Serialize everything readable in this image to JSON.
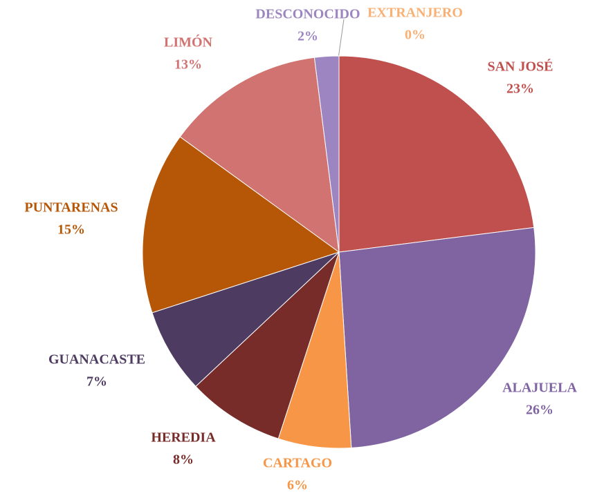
{
  "chart_data": {
    "type": "pie",
    "categories": [
      "SAN JOSÉ",
      "ALAJUELA",
      "CARTAGO",
      "HEREDIA",
      "GUANACASTE",
      "PUNTARENAS",
      "LIMÓN",
      "DESCONOCIDO",
      "EXTRANJERO"
    ],
    "values": [
      23,
      26,
      6,
      8,
      7,
      15,
      13,
      2,
      0
    ],
    "value_labels": [
      "23%",
      "26%",
      "6%",
      "8%",
      "7%",
      "15%",
      "13%",
      "2%",
      "0%"
    ],
    "colors": [
      "#c0504d",
      "#8064a2",
      "#f79646",
      "#772c2a",
      "#4d3b62",
      "#b65708",
      "#d07371",
      "#9c85c0",
      "#f9b074"
    ]
  }
}
